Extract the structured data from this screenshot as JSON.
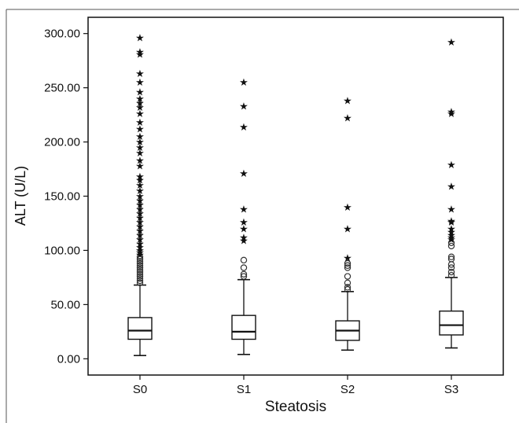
{
  "chart_data": {
    "type": "box",
    "title": "",
    "xlabel": "Steatosis",
    "ylabel": "ALT (U/L)",
    "ylim": [
      -15,
      315
    ],
    "yticks": [
      0,
      50,
      100,
      150,
      200,
      250,
      300
    ],
    "ytick_labels": [
      "0.00",
      "50.00",
      "100.00",
      "150.00",
      "200.00",
      "250.00",
      "300.00"
    ],
    "categories": [
      "S0",
      "S1",
      "S2",
      "S3"
    ],
    "grid": false,
    "boxes": [
      {
        "category": "S0",
        "whisker_low": 3,
        "q1": 18,
        "median": 26,
        "q3": 38,
        "whisker_high": 68,
        "outliers": [
          70,
          72,
          74,
          76,
          78,
          80,
          82,
          84,
          86,
          88,
          90,
          92,
          94
        ],
        "extremes": [
          96,
          98,
          100,
          103,
          106,
          110,
          114,
          118,
          122,
          126,
          130,
          134,
          138,
          142,
          146,
          150,
          155,
          160,
          165,
          168,
          178,
          183,
          190,
          195,
          200,
          205,
          212,
          218,
          226,
          232,
          236,
          240,
          246,
          255,
          263,
          281,
          283,
          296
        ]
      },
      {
        "category": "S1",
        "whisker_low": 4,
        "q1": 18,
        "median": 25,
        "q3": 40,
        "whisker_high": 73,
        "outliers": [
          76,
          78,
          84,
          91
        ],
        "extremes": [
          109,
          112,
          120,
          126,
          138,
          171,
          214,
          233,
          255
        ]
      },
      {
        "category": "S2",
        "whisker_low": 8,
        "q1": 17,
        "median": 26,
        "q3": 35,
        "whisker_high": 62,
        "outliers": [
          64,
          66,
          70,
          76,
          84,
          86,
          88
        ],
        "extremes": [
          93,
          120,
          140,
          222,
          238
        ]
      },
      {
        "category": "S3",
        "whisker_low": 10,
        "q1": 22,
        "median": 31,
        "q3": 44,
        "whisker_high": 75,
        "outliers": [
          77,
          80,
          84,
          87,
          92,
          94,
          104,
          107
        ],
        "extremes": [
          110,
          112,
          114,
          117,
          120,
          126,
          127,
          138,
          159,
          179,
          226,
          228,
          292
        ]
      }
    ]
  }
}
